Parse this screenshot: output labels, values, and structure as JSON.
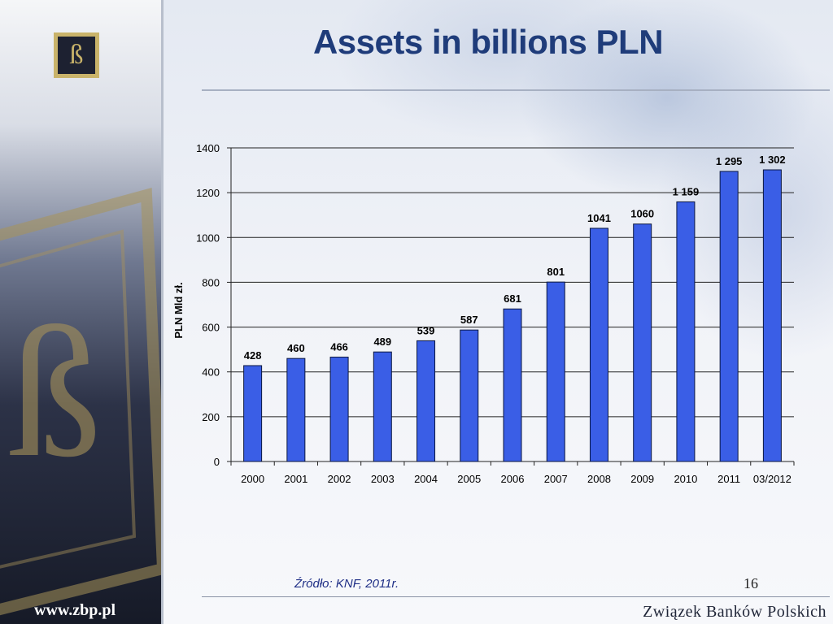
{
  "slide": {
    "title": "Assets in billions PLN",
    "source": "Źródło: KNF, 2011r.",
    "page_number": "16",
    "website": "www.zbp.pl",
    "brand": "Związek Banków Polskich",
    "logo_letter": "ß"
  },
  "colors": {
    "title": "#1f3c7a",
    "bar": "#3a5ee6",
    "bar_stroke": "#0b1740"
  },
  "chart_data": {
    "type": "bar",
    "title": "",
    "xlabel": "",
    "ylabel": "PLN  Mld  zł.",
    "categories": [
      "2000",
      "2001",
      "2002",
      "2003",
      "2004",
      "2005",
      "2006",
      "2007",
      "2008",
      "2009",
      "2010",
      "2011",
      "03/2012"
    ],
    "values": [
      428,
      460,
      466,
      489,
      539,
      587,
      681,
      801,
      1041,
      1060,
      1159,
      1295,
      1302
    ],
    "data_labels": [
      "428",
      "460",
      "466",
      "489",
      "539",
      "587",
      "681",
      "801",
      "1041",
      "1060",
      "1 159",
      "1 295",
      "1 302"
    ],
    "ylim": [
      0,
      1400
    ],
    "yticks": [
      0,
      200,
      400,
      600,
      800,
      1000,
      1200,
      1400
    ],
    "grid": true,
    "legend": false
  }
}
